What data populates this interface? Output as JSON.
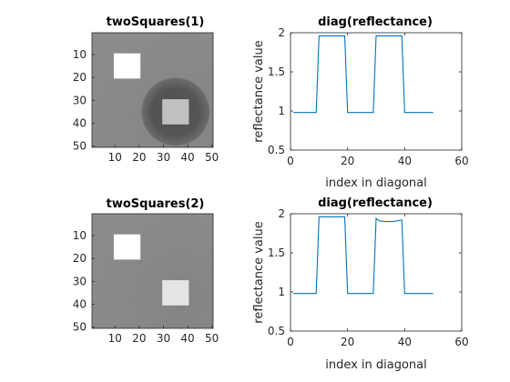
{
  "chart_data": [
    {
      "type": "heatmap",
      "title": "twoSquares(1)",
      "xticks": [
        10,
        20,
        30,
        40,
        50
      ],
      "yticks": [
        10,
        20,
        30,
        40,
        50
      ],
      "xlim": [
        0.5,
        50.5
      ],
      "ylim": [
        0.5,
        50.5
      ],
      "colormap": "gray",
      "background_gray": "#8c8c8c",
      "shapes": [
        {
          "kind": "square",
          "x_range": [
            10,
            20
          ],
          "y_range": [
            10,
            20
          ],
          "color": "#ffffff"
        },
        {
          "kind": "square",
          "x_range": [
            30,
            40
          ],
          "y_range": [
            30,
            40
          ],
          "color": "#c0c0c0"
        },
        {
          "kind": "disk",
          "center": [
            35,
            35
          ],
          "radius": 14,
          "color": "#525252"
        }
      ]
    },
    {
      "type": "line",
      "title": "diag(reflectance)",
      "xlabel": "index in diagonal",
      "ylabel": "reflectance value",
      "xlim": [
        0,
        60
      ],
      "ylim": [
        0.5,
        2
      ],
      "xticks": [
        0,
        20,
        40,
        60
      ],
      "yticks": [
        0.5,
        1,
        1.5,
        2
      ],
      "line_color": "#0072bd",
      "x": [
        1,
        9,
        10,
        19,
        20,
        29,
        30,
        39,
        40,
        50
      ],
      "y": [
        0.98,
        0.98,
        1.96,
        1.96,
        0.98,
        0.98,
        1.96,
        1.96,
        0.98,
        0.98
      ]
    },
    {
      "type": "heatmap",
      "title": "twoSquares(2)",
      "xticks": [
        10,
        20,
        30,
        40,
        50
      ],
      "yticks": [
        10,
        20,
        30,
        40,
        50
      ],
      "xlim": [
        0.5,
        50.5
      ],
      "ylim": [
        0.5,
        50.5
      ],
      "colormap": "gray",
      "background_gray": "#8c8c8c",
      "shapes": [
        {
          "kind": "square",
          "x_range": [
            10,
            20
          ],
          "y_range": [
            10,
            20
          ],
          "color": "#ffffff"
        },
        {
          "kind": "square",
          "x_range": [
            30,
            40
          ],
          "y_range": [
            30,
            40
          ],
          "color": "#e4e4e4"
        }
      ]
    },
    {
      "type": "line",
      "title": "diag(reflectance)",
      "xlabel": "index in diagonal",
      "ylabel": "reflectance value",
      "xlim": [
        0,
        60
      ],
      "ylim": [
        0.5,
        2
      ],
      "xticks": [
        0,
        20,
        40,
        60
      ],
      "yticks": [
        0.5,
        1,
        1.5,
        2
      ],
      "line_color": "#0072bd",
      "x": [
        1,
        9,
        10,
        19,
        20,
        29,
        30,
        31,
        33,
        36,
        39,
        40,
        50
      ],
      "y": [
        0.98,
        0.98,
        1.96,
        1.96,
        0.98,
        0.98,
        1.94,
        1.91,
        1.9,
        1.9,
        1.92,
        0.98,
        0.98
      ]
    }
  ]
}
